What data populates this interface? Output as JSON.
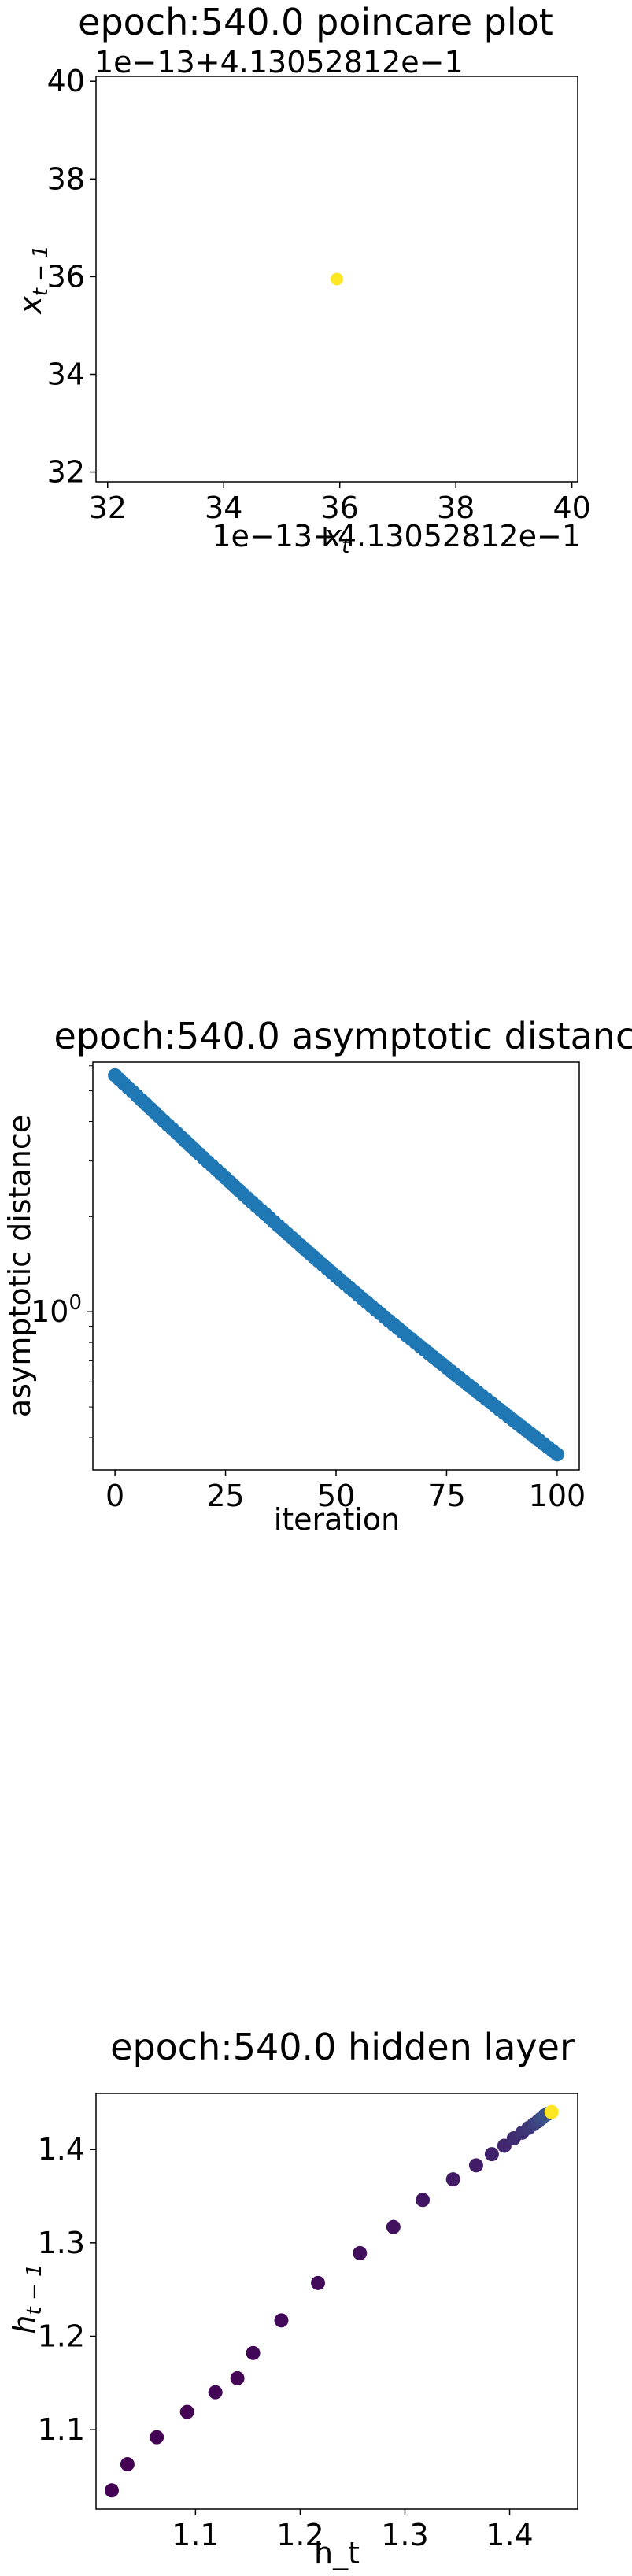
{
  "chart_data": [
    {
      "type": "scatter",
      "title": "epoch:540.0 poincare plot",
      "xlabel": "x_t",
      "ylabel": "x_{t-1}",
      "xlim": [
        31.8,
        40.1
      ],
      "ylim": [
        31.8,
        40.1
      ],
      "xticks": [
        "32",
        "34",
        "36",
        "38",
        "40"
      ],
      "yticks": [
        "32",
        "34",
        "36",
        "38",
        "40"
      ],
      "xtick_values": [
        32,
        34,
        36,
        38,
        40
      ],
      "ytick_values": [
        32,
        34,
        36,
        38,
        40
      ],
      "x_offset_text": "1e−13+4.13052812e−1",
      "y_offset_text": "1e−13+4.13052812e−1",
      "points": [
        {
          "x": 35.95,
          "y": 35.95
        }
      ],
      "point_color": "#fde725",
      "grid": false
    },
    {
      "type": "scatter",
      "title": "epoch:540.0 asymptotic distance",
      "xlabel": "iteration",
      "ylabel": "asymptotic distance",
      "xlim": [
        -5,
        105
      ],
      "y_scale": "log",
      "ylim_log10": [
        -0.5,
        0.79
      ],
      "xticks": [
        "0",
        "25",
        "50",
        "75",
        "100"
      ],
      "xtick_values": [
        0,
        25,
        50,
        75,
        100
      ],
      "ytick_labels": [
        {
          "label": "10",
          "exp": "0",
          "log10": 0
        }
      ],
      "y_start": 5.6,
      "y_end": 0.354,
      "n_points": 101,
      "point_color": "#1f77b4",
      "grid": false
    },
    {
      "type": "scatter",
      "title": "epoch:540.0 hidden layer",
      "xlabel": "h_t",
      "ylabel": "h_{t-1}",
      "xlim": [
        1.005,
        1.465
      ],
      "ylim": [
        1.015,
        1.46
      ],
      "xticks": [
        "1.1",
        "1.2",
        "1.3",
        "1.4"
      ],
      "xtick_values": [
        1.1,
        1.2,
        1.3,
        1.4
      ],
      "yticks": [
        "1.1",
        "1.2",
        "1.3",
        "1.4"
      ],
      "ytick_values": [
        1.1,
        1.2,
        1.3,
        1.4
      ],
      "points": [
        {
          "x": 1.02,
          "y": 1.035
        },
        {
          "x": 1.035,
          "y": 1.063
        },
        {
          "x": 1.063,
          "y": 1.092
        },
        {
          "x": 1.092,
          "y": 1.119
        },
        {
          "x": 1.119,
          "y": 1.14
        },
        {
          "x": 1.14,
          "y": 1.155
        },
        {
          "x": 1.155,
          "y": 1.182
        },
        {
          "x": 1.182,
          "y": 1.217
        },
        {
          "x": 1.217,
          "y": 1.257
        },
        {
          "x": 1.257,
          "y": 1.289
        },
        {
          "x": 1.289,
          "y": 1.317
        },
        {
          "x": 1.317,
          "y": 1.346
        },
        {
          "x": 1.346,
          "y": 1.368
        },
        {
          "x": 1.368,
          "y": 1.383
        },
        {
          "x": 1.383,
          "y": 1.395
        },
        {
          "x": 1.395,
          "y": 1.404
        },
        {
          "x": 1.404,
          "y": 1.412
        },
        {
          "x": 1.412,
          "y": 1.418
        },
        {
          "x": 1.418,
          "y": 1.423
        },
        {
          "x": 1.423,
          "y": 1.427
        },
        {
          "x": 1.427,
          "y": 1.43
        },
        {
          "x": 1.43,
          "y": 1.433
        },
        {
          "x": 1.433,
          "y": 1.436
        },
        {
          "x": 1.436,
          "y": 1.438
        },
        {
          "x": 1.44,
          "y": 1.44
        }
      ],
      "colors": {
        "start": "#440154",
        "mid": "#3b528b",
        "end": "#fde725"
      },
      "grid": false
    }
  ]
}
